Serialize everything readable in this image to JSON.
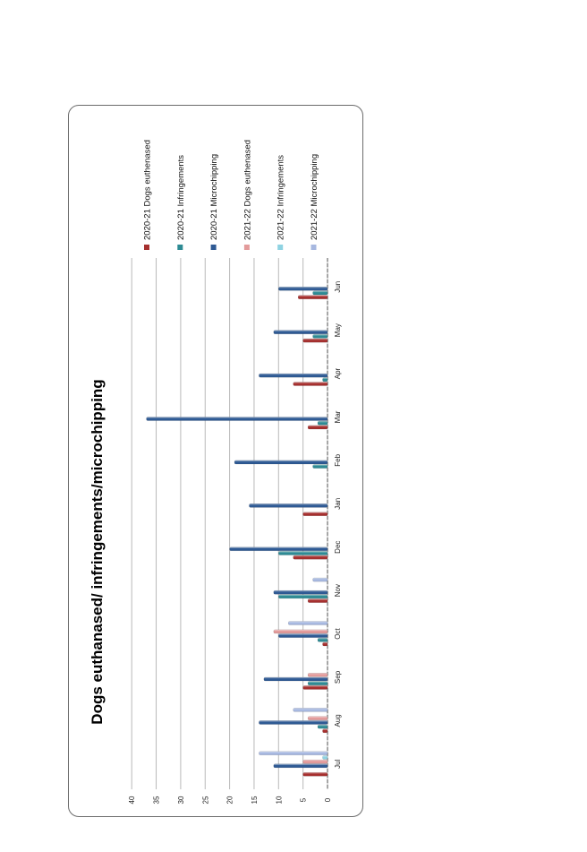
{
  "chart_data": {
    "type": "bar",
    "title": "Dogs euthanased/ infringements/microchipping",
    "categories": [
      "Jul",
      "Aug",
      "Sep",
      "Oct",
      "Nov",
      "Dec",
      "Jan",
      "Feb",
      "Mar",
      "Apr",
      "May",
      "Jun"
    ],
    "ylim": [
      0,
      40
    ],
    "yticks": [
      "0",
      "5",
      "10",
      "15",
      "20",
      "25",
      "30",
      "35",
      "40"
    ],
    "grid": true,
    "legend_position": "right",
    "orientation": "rotated-90",
    "series": [
      {
        "name": "2020-21 Dogs euthenased",
        "color": "#a6302f",
        "values": [
          5,
          1,
          5,
          1,
          4,
          7,
          5,
          0,
          4,
          7,
          5,
          6
        ]
      },
      {
        "name": "2020-21 Infringements",
        "color": "#2e8b94",
        "values": [
          0,
          2,
          4,
          2,
          10,
          10,
          0,
          3,
          2,
          1,
          3,
          3
        ]
      },
      {
        "name": "2020-21 Microchipping",
        "color": "#2f5a94",
        "values": [
          11,
          14,
          13,
          10,
          11,
          20,
          16,
          19,
          37,
          14,
          11,
          10
        ]
      },
      {
        "name": "2021-22 Dogs euthenased",
        "color": "#e39b9b",
        "values": [
          5,
          4,
          4,
          11,
          0,
          0,
          0,
          0,
          0,
          0,
          0,
          0
        ]
      },
      {
        "name": "2021-22 Infringements",
        "color": "#8fd3e2",
        "values": [
          1,
          0,
          0,
          0,
          0,
          0,
          0,
          0,
          0,
          0,
          0,
          0
        ]
      },
      {
        "name": "2021-22 Microchipping",
        "color": "#a7b8e0",
        "values": [
          14,
          7,
          0,
          8,
          3,
          0,
          0,
          0,
          0,
          0,
          0,
          0
        ]
      }
    ]
  }
}
